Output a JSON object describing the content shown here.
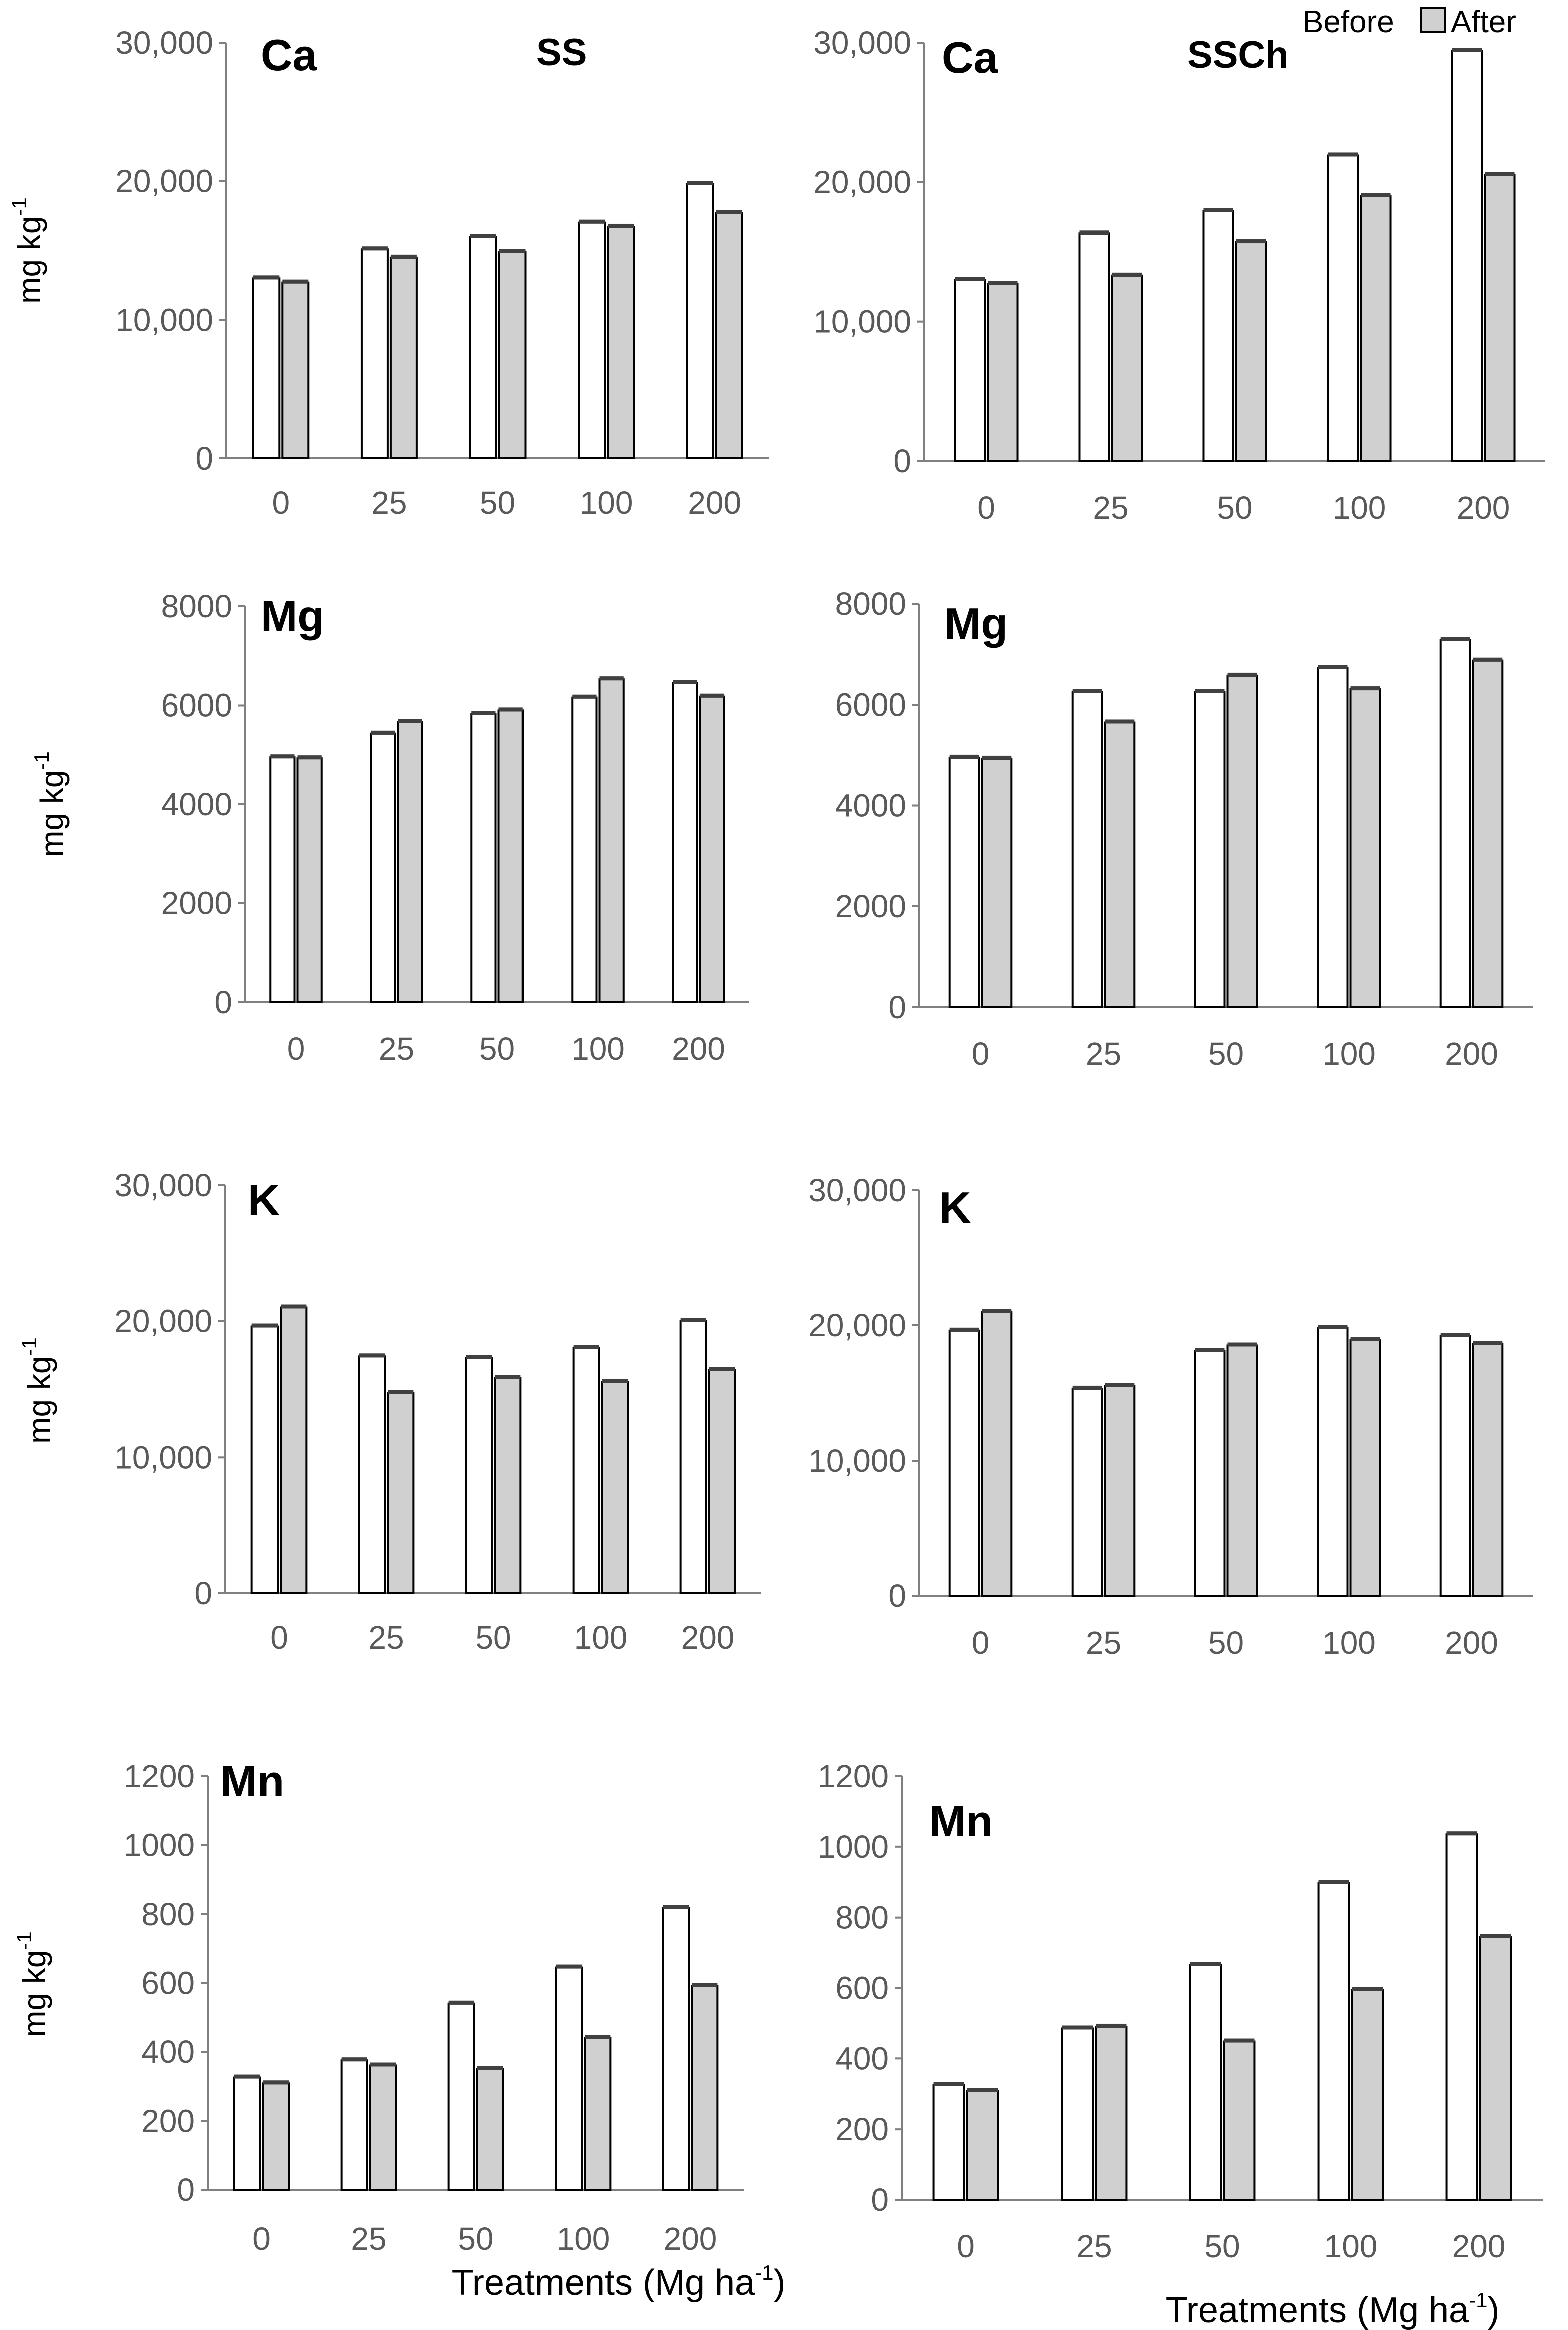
{
  "legend": {
    "before_label": "Before",
    "after_label": "After"
  },
  "x_axis_title": "Treatments (Mg ha",
  "x_axis_title_sup": "-1",
  "x_axis_title_end": ")",
  "y_axis_title": "mg kg",
  "y_axis_title_sup": "-1",
  "colors": {
    "before": "#ffffff",
    "after": "#d0d0d0",
    "axis": "#808080",
    "tick_text": "#595959"
  },
  "chart_data": [
    {
      "type": "bar",
      "element": "Ca",
      "treatment": "SS",
      "categories": [
        "0",
        "25",
        "50",
        "100",
        "200"
      ],
      "series": [
        {
          "name": "Before",
          "values": [
            13000,
            15100,
            16000,
            17000,
            19800
          ]
        },
        {
          "name": "After",
          "values": [
            12700,
            14500,
            14900,
            16700,
            17700
          ]
        }
      ],
      "ylim": [
        0,
        30000
      ],
      "yticks": [
        0,
        10000,
        20000,
        30000
      ],
      "ytick_labels": [
        "0",
        "10,000",
        "20,000",
        "30,000"
      ],
      "xlabel": "",
      "ylabel": "mg kg-1"
    },
    {
      "type": "bar",
      "element": "Ca",
      "treatment": "SSCh",
      "categories": [
        "0",
        "25",
        "50",
        "100",
        "200"
      ],
      "series": [
        {
          "name": "Before",
          "values": [
            13000,
            16300,
            17900,
            21900,
            29400
          ]
        },
        {
          "name": "After",
          "values": [
            12700,
            13300,
            15700,
            19000,
            20500
          ]
        }
      ],
      "ylim": [
        0,
        30000
      ],
      "yticks": [
        0,
        10000,
        20000,
        30000
      ],
      "ytick_labels": [
        "0",
        "10,000",
        "20,000",
        "30,000"
      ],
      "xlabel": "",
      "ylabel": ""
    },
    {
      "type": "bar",
      "element": "Mg",
      "treatment": "",
      "categories": [
        "0",
        "25",
        "50",
        "100",
        "200"
      ],
      "series": [
        {
          "name": "Before",
          "values": [
            4950,
            5430,
            5830,
            6150,
            6450
          ]
        },
        {
          "name": "After",
          "values": [
            4930,
            5670,
            5900,
            6520,
            6170
          ]
        }
      ],
      "ylim": [
        0,
        8000
      ],
      "yticks": [
        0,
        2000,
        4000,
        6000,
        8000
      ],
      "ytick_labels": [
        "0",
        "2000",
        "4000",
        "6000",
        "8000"
      ],
      "xlabel": "",
      "ylabel": "mg kg-1"
    },
    {
      "type": "bar",
      "element": "Mg",
      "treatment": "",
      "categories": [
        "0",
        "25",
        "50",
        "100",
        "200"
      ],
      "series": [
        {
          "name": "Before",
          "values": [
            4950,
            6250,
            6250,
            6720,
            7280
          ]
        },
        {
          "name": "After",
          "values": [
            4930,
            5650,
            6570,
            6300,
            6870
          ]
        }
      ],
      "ylim": [
        0,
        8000
      ],
      "yticks": [
        0,
        2000,
        4000,
        6000,
        8000
      ],
      "ytick_labels": [
        "0",
        "2000",
        "4000",
        "6000",
        "8000"
      ],
      "xlabel": "",
      "ylabel": ""
    },
    {
      "type": "bar",
      "element": "K",
      "treatment": "",
      "categories": [
        "0",
        "25",
        "50",
        "100",
        "200"
      ],
      "series": [
        {
          "name": "Before",
          "values": [
            19600,
            17400,
            17300,
            18000,
            20000
          ]
        },
        {
          "name": "After",
          "values": [
            21000,
            14700,
            15800,
            15500,
            16400
          ]
        }
      ],
      "ylim": [
        0,
        30000
      ],
      "yticks": [
        0,
        10000,
        20000,
        30000
      ],
      "ytick_labels": [
        "0",
        "10,000",
        "20,000",
        "30,000"
      ],
      "xlabel": "",
      "ylabel": "mg kg-1"
    },
    {
      "type": "bar",
      "element": "K",
      "treatment": "",
      "categories": [
        "0",
        "25",
        "50",
        "100",
        "200"
      ],
      "series": [
        {
          "name": "Before",
          "values": [
            19600,
            15300,
            18100,
            19800,
            19200
          ]
        },
        {
          "name": "After",
          "values": [
            21000,
            15500,
            18500,
            18900,
            18600
          ]
        }
      ],
      "ylim": [
        0,
        30000
      ],
      "yticks": [
        0,
        10000,
        20000,
        30000
      ],
      "ytick_labels": [
        "0",
        "10,000",
        "20,000",
        "30,000"
      ],
      "xlabel": "",
      "ylabel": ""
    },
    {
      "type": "bar",
      "element": "Mn",
      "treatment": "",
      "categories": [
        "0",
        "25",
        "50",
        "100",
        "200"
      ],
      "series": [
        {
          "name": "Before",
          "values": [
            325,
            375,
            540,
            645,
            818
          ]
        },
        {
          "name": "After",
          "values": [
            308,
            360,
            350,
            440,
            592
          ]
        }
      ],
      "ylim": [
        0,
        1200
      ],
      "yticks": [
        0,
        200,
        400,
        600,
        800,
        1000,
        1200
      ],
      "ytick_labels": [
        "0",
        "200",
        "400",
        "600",
        "800",
        "1000",
        "1200"
      ],
      "xlabel": "Treatments (Mg ha-1)",
      "ylabel": "mg kg-1"
    },
    {
      "type": "bar",
      "element": "Mn",
      "treatment": "",
      "categories": [
        "0",
        "25",
        "50",
        "100",
        "200"
      ],
      "series": [
        {
          "name": "Before",
          "values": [
            325,
            485,
            665,
            898,
            1035
          ]
        },
        {
          "name": "After",
          "values": [
            308,
            490,
            448,
            595,
            745
          ]
        }
      ],
      "ylim": [
        0,
        1200
      ],
      "yticks": [
        0,
        200,
        400,
        600,
        800,
        1000,
        1200
      ],
      "ytick_labels": [
        "0",
        "200",
        "400",
        "600",
        "800",
        "1000",
        "1200"
      ],
      "xlabel": "Treatments (Mg ha-1)",
      "ylabel": ""
    }
  ]
}
